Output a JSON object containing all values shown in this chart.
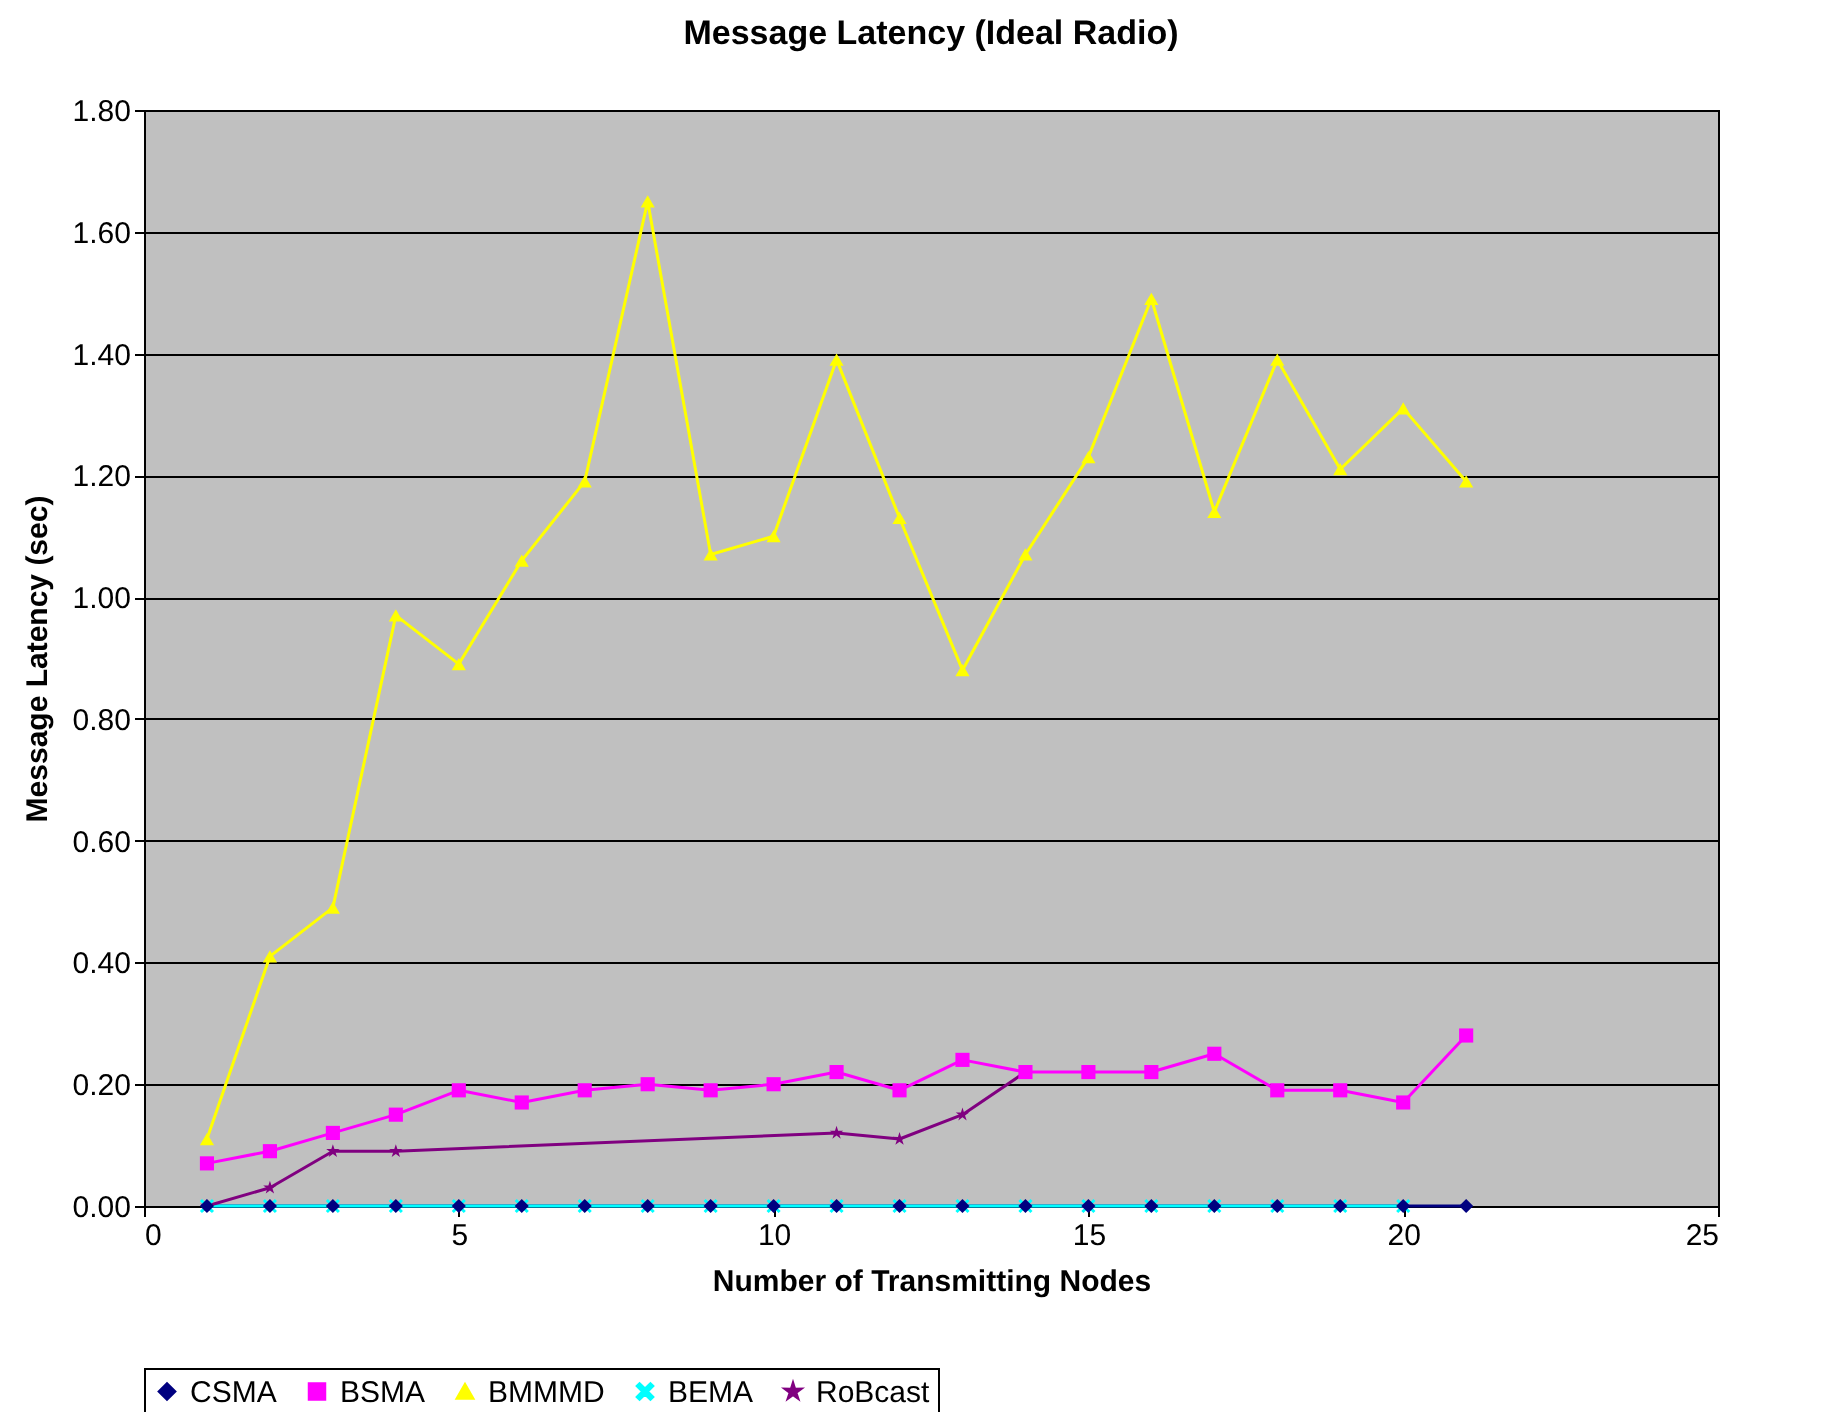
{
  "chart_data": {
    "type": "line",
    "title": "Message Latency (Ideal Radio)",
    "xlabel": "Number of Transmitting Nodes",
    "ylabel": "Message Latency (sec)",
    "x": [
      1,
      2,
      3,
      4,
      5,
      6,
      7,
      8,
      9,
      10,
      11,
      12,
      13,
      14,
      15,
      16,
      17,
      18,
      19,
      20,
      21
    ],
    "series": [
      {
        "name": "CSMA",
        "color": "#000080",
        "marker": "diamond",
        "values": [
          0,
          0,
          0,
          0,
          0,
          0,
          0,
          0,
          0,
          0,
          0,
          0,
          0,
          0,
          0,
          0,
          0,
          0,
          0,
          0,
          0
        ]
      },
      {
        "name": "BSMA",
        "color": "#ff00ff",
        "marker": "square",
        "values": [
          0.07,
          0.09,
          0.12,
          0.15,
          0.19,
          0.17,
          0.19,
          0.2,
          0.19,
          0.2,
          0.22,
          0.19,
          0.24,
          0.22,
          0.22,
          0.22,
          0.25,
          0.19,
          0.19,
          0.17,
          0.28
        ]
      },
      {
        "name": "BMMMD",
        "color": "#ffff00",
        "marker": "triangle",
        "values": [
          0.11,
          0.41,
          0.49,
          0.97,
          0.89,
          1.06,
          1.19,
          1.65,
          1.07,
          1.1,
          1.39,
          1.13,
          0.88,
          1.07,
          1.23,
          1.49,
          1.14,
          1.39,
          1.21,
          1.31,
          1.19
        ]
      },
      {
        "name": "BEMA",
        "color": "#00ffff",
        "marker": "cross",
        "x": [
          1,
          2,
          3,
          4,
          5,
          6,
          7,
          8,
          9,
          10,
          11,
          12,
          13,
          14,
          15,
          16,
          17,
          18,
          19,
          20
        ],
        "values": [
          0,
          0,
          0,
          0,
          0,
          0,
          0,
          0,
          0,
          0,
          0,
          0,
          0,
          0,
          0,
          0,
          0,
          0,
          0,
          0
        ]
      },
      {
        "name": "RoBcast",
        "color": "#800080",
        "marker": "star",
        "x": [
          1,
          2,
          3,
          4,
          11,
          12,
          13,
          14
        ],
        "values": [
          0,
          0.03,
          0.09,
          0.09,
          0.12,
          0.11,
          0.15,
          0.22
        ]
      }
    ],
    "xlim": [
      0,
      25
    ],
    "xticks": [
      0,
      5,
      10,
      15,
      20,
      25
    ],
    "ylim": [
      0,
      1.8
    ],
    "yticks": [
      {
        "value": 0,
        "label": "0.00"
      },
      {
        "value": 0.2,
        "label": "0.20"
      },
      {
        "value": 0.4,
        "label": "0.40"
      },
      {
        "value": 0.6,
        "label": "0.60"
      },
      {
        "value": 0.8,
        "label": "0.80"
      },
      {
        "value": 1.0,
        "label": "1.00"
      },
      {
        "value": 1.2,
        "label": "1.20"
      },
      {
        "value": 1.4,
        "label": "1.40"
      },
      {
        "value": 1.6,
        "label": "1.60"
      },
      {
        "value": 1.8,
        "label": "1.80"
      }
    ],
    "grid": "y",
    "legend": "bottom",
    "line_style": "solid"
  }
}
